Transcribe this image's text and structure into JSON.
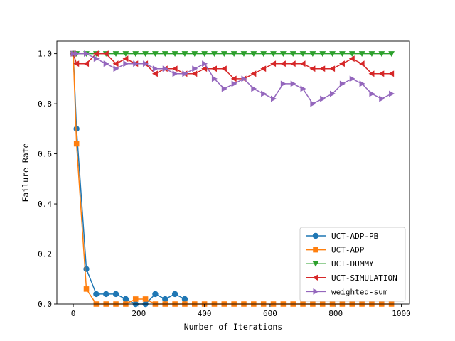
{
  "chart_data": {
    "type": "line",
    "title": "",
    "xlabel": "Number of Iterations",
    "ylabel": "Failure Rate",
    "xlim": [
      -50,
      1025
    ],
    "ylim": [
      0,
      1.05
    ],
    "xticks": [
      0,
      200,
      400,
      600,
      800,
      1000
    ],
    "xtick_labels": [
      "0",
      "200",
      "400",
      "600",
      "800",
      "1000"
    ],
    "yticks": [
      0,
      0.2,
      0.4,
      0.6,
      0.8,
      1.0
    ],
    "ytick_labels": [
      "0.0",
      "0.2",
      "0.4",
      "0.6",
      "0.8",
      "1.0"
    ],
    "grid": false,
    "legend_position": "lower-right",
    "series": [
      {
        "name": "UCT-ADP-PB",
        "color": "#1f77b4",
        "marker": "circle",
        "x": [
          0,
          10,
          40,
          70,
          100,
          130,
          160,
          190,
          220,
          250,
          280,
          310,
          340
        ],
        "y": [
          1.0,
          0.7,
          0.14,
          0.04,
          0.04,
          0.04,
          0.02,
          0.0,
          0.0,
          0.04,
          0.02,
          0.04,
          0.02
        ]
      },
      {
        "name": "UCT-ADP",
        "color": "#ff7f0e",
        "marker": "square",
        "x": [
          0,
          10,
          40,
          70,
          100,
          130,
          160,
          190,
          220,
          250,
          280,
          310,
          340,
          370,
          400,
          430,
          460,
          490,
          520,
          550,
          580,
          610,
          640,
          670,
          700,
          730,
          760,
          790,
          820,
          850,
          880,
          910,
          940,
          970
        ],
        "y": [
          1.0,
          0.64,
          0.06,
          0.0,
          0.0,
          0.0,
          0.0,
          0.02,
          0.02,
          0.0,
          0.0,
          0.0,
          0.0,
          0.0,
          0.0,
          0.0,
          0.0,
          0.0,
          0.0,
          0.0,
          0.0,
          0.0,
          0.0,
          0.0,
          0.0,
          0.0,
          0.0,
          0.0,
          0.0,
          0.0,
          0.0,
          0.0,
          0.0,
          0.0
        ]
      },
      {
        "name": "UCT-DUMMY",
        "color": "#2ca02c",
        "marker": "triangle-down",
        "x": [
          0,
          10,
          40,
          70,
          100,
          130,
          160,
          190,
          220,
          250,
          280,
          310,
          340,
          370,
          400,
          430,
          460,
          490,
          520,
          550,
          580,
          610,
          640,
          670,
          700,
          730,
          760,
          790,
          820,
          850,
          880,
          910,
          940,
          970
        ],
        "y": [
          1.0,
          1.0,
          1.0,
          1.0,
          1.0,
          1.0,
          1.0,
          1.0,
          1.0,
          1.0,
          1.0,
          1.0,
          1.0,
          1.0,
          1.0,
          1.0,
          1.0,
          1.0,
          1.0,
          1.0,
          1.0,
          1.0,
          1.0,
          1.0,
          1.0,
          1.0,
          1.0,
          1.0,
          1.0,
          1.0,
          1.0,
          1.0,
          1.0,
          1.0
        ]
      },
      {
        "name": "UCT-SIMULATION",
        "color": "#d62728",
        "marker": "triangle-left",
        "x": [
          0,
          10,
          40,
          70,
          100,
          130,
          160,
          190,
          220,
          250,
          280,
          310,
          340,
          370,
          400,
          430,
          460,
          490,
          520,
          550,
          580,
          610,
          640,
          670,
          700,
          730,
          760,
          790,
          820,
          850,
          880,
          910,
          940,
          970
        ],
        "y": [
          1.0,
          0.96,
          0.96,
          1.0,
          1.0,
          0.96,
          0.98,
          0.96,
          0.96,
          0.92,
          0.94,
          0.94,
          0.92,
          0.92,
          0.94,
          0.94,
          0.94,
          0.9,
          0.9,
          0.92,
          0.94,
          0.96,
          0.96,
          0.96,
          0.96,
          0.94,
          0.94,
          0.94,
          0.96,
          0.98,
          0.96,
          0.92,
          0.92,
          0.92
        ]
      },
      {
        "name": "weighted-sum",
        "color": "#9467bd",
        "marker": "triangle-right",
        "x": [
          0,
          10,
          40,
          70,
          100,
          130,
          160,
          190,
          220,
          250,
          280,
          310,
          340,
          370,
          400,
          430,
          460,
          490,
          520,
          550,
          580,
          610,
          640,
          670,
          700,
          730,
          760,
          790,
          820,
          850,
          880,
          910,
          940,
          970
        ],
        "y": [
          1.0,
          1.0,
          1.0,
          0.98,
          0.96,
          0.94,
          0.96,
          0.96,
          0.96,
          0.94,
          0.94,
          0.92,
          0.92,
          0.94,
          0.96,
          0.9,
          0.86,
          0.88,
          0.9,
          0.86,
          0.84,
          0.82,
          0.88,
          0.88,
          0.86,
          0.8,
          0.82,
          0.84,
          0.88,
          0.9,
          0.88,
          0.84,
          0.82,
          0.84
        ]
      }
    ]
  }
}
